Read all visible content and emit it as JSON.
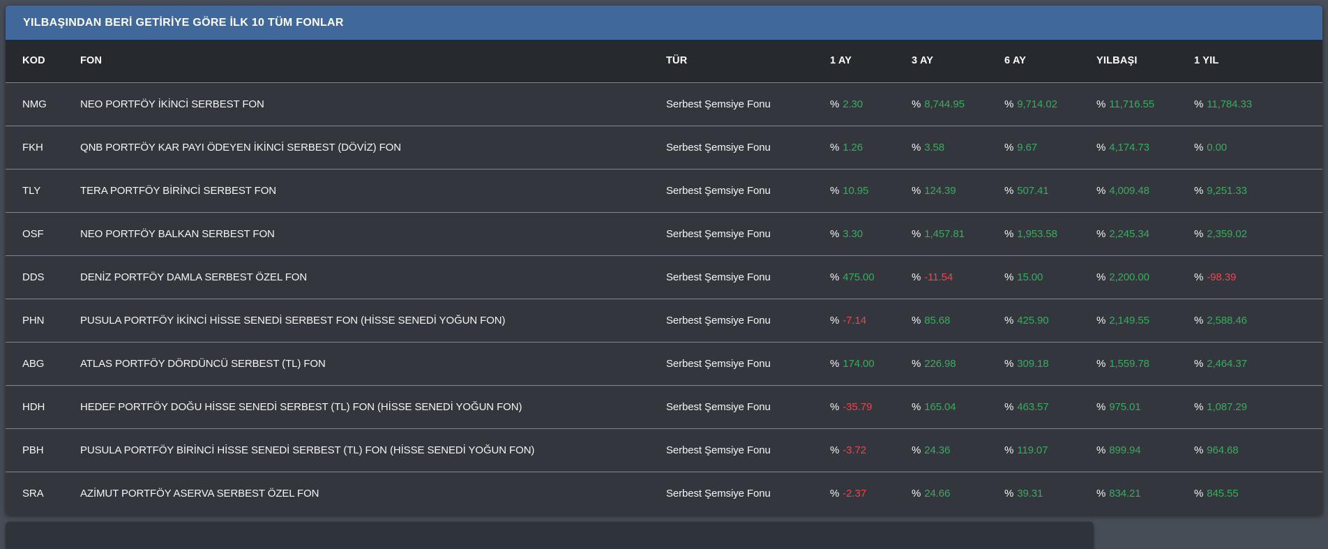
{
  "panel": {
    "title": "YILBAŞINDAN BERİ GETİRİYE GÖRE İLK 10 TÜM FONLAR"
  },
  "table": {
    "percent_prefix": "%",
    "columns": [
      "KOD",
      "FON",
      "TÜR",
      "1 AY",
      "3 AY",
      "6 AY",
      "YILBAŞI",
      "1 YIL"
    ],
    "rows": [
      {
        "kod": "NMG",
        "fon": "NEO PORTFÖY İKİNCİ SERBEST FON",
        "tur": "Serbest Şemsiye Fonu",
        "returns": [
          "2.30",
          "8,744.95",
          "9,714.02",
          "11,716.55",
          "11,784.33"
        ]
      },
      {
        "kod": "FKH",
        "fon": "QNB PORTFÖY KAR PAYI ÖDEYEN İKİNCİ SERBEST (DÖVİZ) FON",
        "tur": "Serbest Şemsiye Fonu",
        "returns": [
          "1.26",
          "3.58",
          "9.67",
          "4,174.73",
          "0.00"
        ]
      },
      {
        "kod": "TLY",
        "fon": "TERA PORTFÖY BİRİNCİ SERBEST FON",
        "tur": "Serbest Şemsiye Fonu",
        "returns": [
          "10.95",
          "124.39",
          "507.41",
          "4,009.48",
          "9,251.33"
        ]
      },
      {
        "kod": "OSF",
        "fon": "NEO PORTFÖY BALKAN SERBEST FON",
        "tur": "Serbest Şemsiye Fonu",
        "returns": [
          "3.30",
          "1,457.81",
          "1,953.58",
          "2,245.34",
          "2,359.02"
        ]
      },
      {
        "kod": "DDS",
        "fon": "DENİZ PORTFÖY DAMLA SERBEST ÖZEL FON",
        "tur": "Serbest Şemsiye Fonu",
        "returns": [
          "475.00",
          "-11.54",
          "15.00",
          "2,200.00",
          "-98.39"
        ]
      },
      {
        "kod": "PHN",
        "fon": "PUSULA PORTFÖY İKİNCİ HİSSE SENEDİ SERBEST FON (HİSSE SENEDİ YOĞUN FON)",
        "tur": "Serbest Şemsiye Fonu",
        "returns": [
          "-7.14",
          "85.68",
          "425.90",
          "2,149.55",
          "2,588.46"
        ]
      },
      {
        "kod": "ABG",
        "fon": "ATLAS PORTFÖY DÖRDÜNCÜ SERBEST (TL) FON",
        "tur": "Serbest Şemsiye Fonu",
        "returns": [
          "174.00",
          "226.98",
          "309.18",
          "1,559.78",
          "2,464.37"
        ]
      },
      {
        "kod": "HDH",
        "fon": "HEDEF PORTFÖY DOĞU HİSSE SENEDİ SERBEST (TL) FON (HİSSE SENEDİ YOĞUN FON)",
        "tur": "Serbest Şemsiye Fonu",
        "returns": [
          "-35.79",
          "165.04",
          "463.57",
          "975.01",
          "1,087.29"
        ]
      },
      {
        "kod": "PBH",
        "fon": "PUSULA PORTFÖY BİRİNCİ HİSSE SENEDİ SERBEST (TL) FON (HİSSE SENEDİ YOĞUN FON)",
        "tur": "Serbest Şemsiye Fonu",
        "returns": [
          "-3.72",
          "24.36",
          "119.07",
          "899.94",
          "964.68"
        ]
      },
      {
        "kod": "SRA",
        "fon": "AZİMUT PORTFÖY ASERVA SERBEST ÖZEL FON",
        "tur": "Serbest Şemsiye Fonu",
        "returns": [
          "-2.37",
          "24.66",
          "39.31",
          "834.21",
          "845.55"
        ]
      }
    ]
  },
  "colors": {
    "accent": "#40689b",
    "positive": "#3cab60",
    "negative": "#eb4650"
  }
}
